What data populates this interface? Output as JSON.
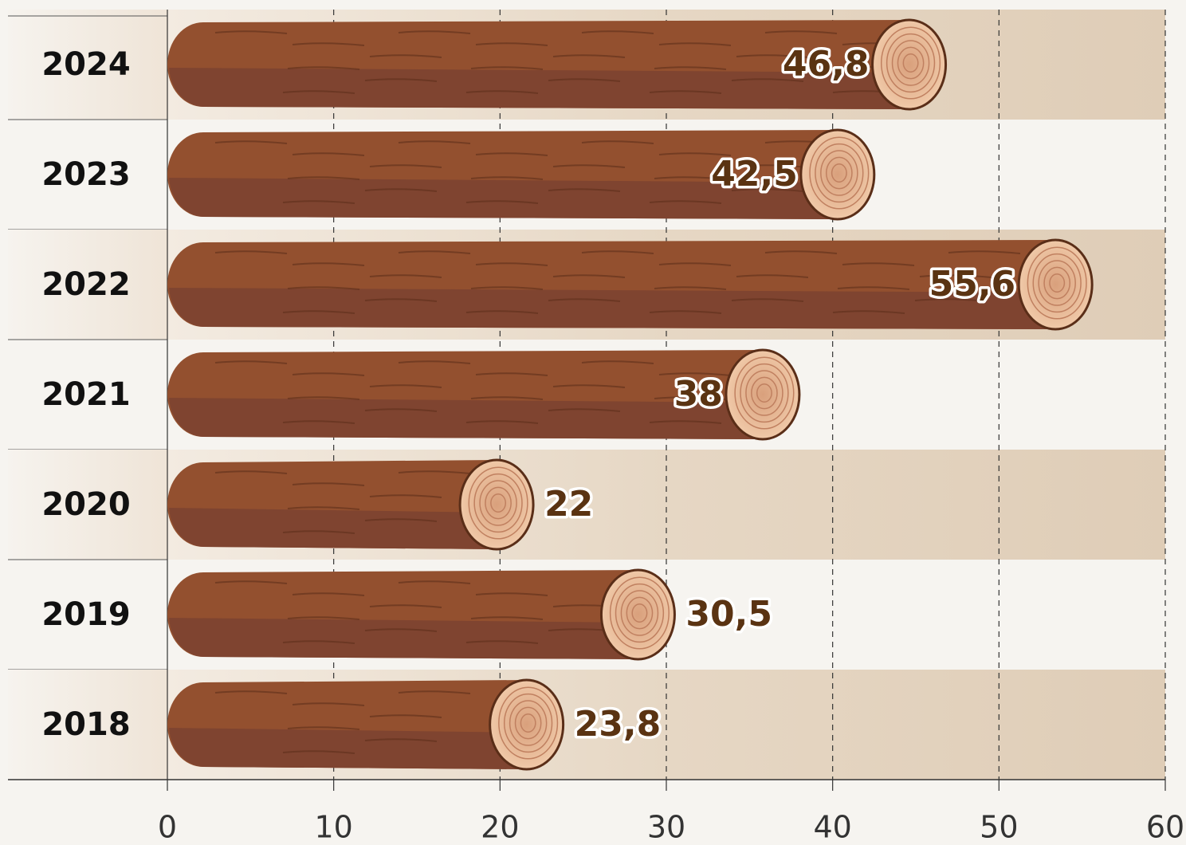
{
  "chart_data": {
    "type": "bar",
    "orientation": "horizontal",
    "categories": [
      "2024",
      "2023",
      "2022",
      "2021",
      "2020",
      "2019",
      "2018"
    ],
    "values": [
      46.8,
      42.5,
      55.6,
      38,
      22,
      30.5,
      23.8
    ],
    "value_labels": [
      "46,8",
      "42,5",
      "55,6",
      "38",
      "22",
      "30,5",
      "23,8"
    ],
    "color": "#93502f",
    "xlim": [
      0,
      60
    ],
    "xticks": [
      0,
      10,
      20,
      30,
      40,
      50,
      60
    ],
    "grid": true
  }
}
